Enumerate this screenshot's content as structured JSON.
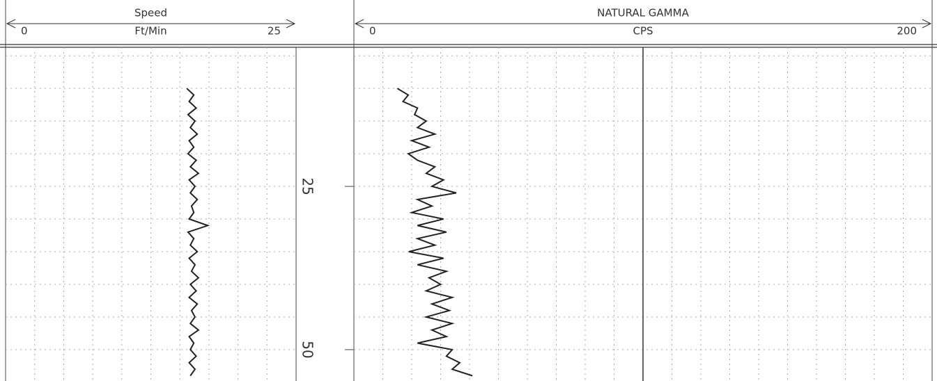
{
  "depth_track": {
    "ylim": [
      3.7,
      54.8
    ],
    "yticks": [
      25,
      50
    ],
    "ygrid": [
      5,
      10,
      15,
      20,
      25,
      30,
      35,
      40,
      45,
      50
    ]
  },
  "chart_data": [
    {
      "type": "line",
      "title": "Speed",
      "xlabel": "Ft/Min",
      "xlim": [
        0,
        25
      ],
      "xticks": [
        0,
        25
      ],
      "xgrid": [
        2.5,
        5,
        7.5,
        10,
        12.5,
        15,
        17.5,
        20,
        22.5
      ],
      "color": "#222",
      "y": [
        10,
        11,
        12,
        13,
        14,
        15,
        16,
        17,
        18,
        19,
        20,
        21,
        22,
        23,
        24,
        25,
        26,
        27,
        28,
        29,
        30,
        31,
        32,
        33,
        34,
        35,
        36,
        37,
        38,
        39,
        40,
        41,
        42,
        43,
        44,
        45,
        46,
        47,
        48,
        49,
        50,
        51,
        52,
        53,
        54
      ],
      "values": [
        15.6,
        16.2,
        15.8,
        16.4,
        15.7,
        16.3,
        15.9,
        16.5,
        15.8,
        16.2,
        15.7,
        16.4,
        15.9,
        16.6,
        15.8,
        16.3,
        15.9,
        16.5,
        16.0,
        16.2,
        15.8,
        17.4,
        15.7,
        16.2,
        15.9,
        16.5,
        15.8,
        16.3,
        16.0,
        16.6,
        15.9,
        16.4,
        15.8,
        16.5,
        16.0,
        16.3,
        15.9,
        16.6,
        15.8,
        16.2,
        15.9,
        16.4,
        15.8,
        16.3,
        15.9
      ]
    },
    {
      "type": "line",
      "title": "NATURAL GAMMA",
      "xlabel": "CPS",
      "xlim": [
        0,
        200
      ],
      "xticks": [
        0,
        200
      ],
      "xgrid": [
        10,
        20,
        30,
        40,
        50,
        60,
        70,
        80,
        90,
        100,
        110,
        120,
        130,
        140,
        150,
        160,
        170,
        180,
        190
      ],
      "major_xgrid": 100,
      "color": "#222",
      "y": [
        10,
        11,
        12,
        13,
        14,
        15,
        16,
        17,
        18,
        19,
        20,
        21,
        22,
        23,
        24,
        25,
        26,
        27,
        28,
        29,
        30,
        31,
        32,
        33,
        34,
        35,
        36,
        37,
        38,
        39,
        40,
        41,
        42,
        43,
        44,
        45,
        46,
        47,
        48,
        49,
        50,
        51,
        52,
        53,
        54
      ],
      "values": [
        15,
        18.8,
        17,
        22,
        21,
        25,
        22,
        28,
        20,
        26,
        18.8,
        22,
        28,
        25,
        31,
        27,
        35.4,
        22,
        27,
        20,
        31,
        22,
        32,
        22,
        28,
        19,
        31,
        22,
        32,
        26,
        30,
        25,
        34,
        27,
        33,
        25,
        34,
        27,
        32,
        22,
        34,
        32,
        36.6,
        34,
        41
      ]
    }
  ]
}
